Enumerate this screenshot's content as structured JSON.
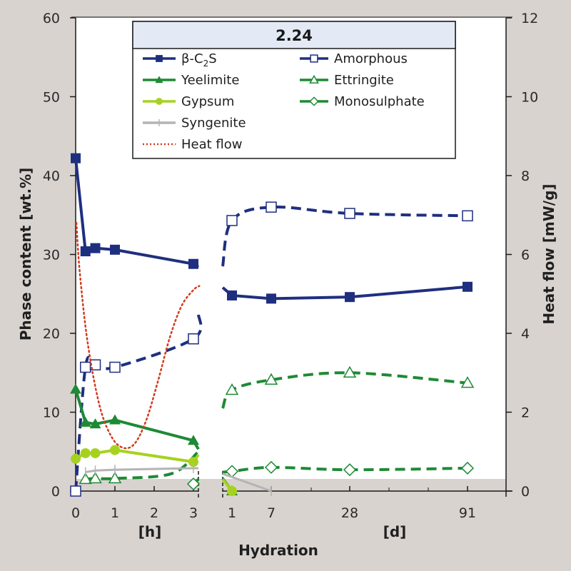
{
  "chart_data": {
    "type": "line",
    "title": "2.24",
    "xlabel": "Hydration",
    "ylabel": "Phase content [wt.%]",
    "y2label": "Heat flow [mW/g]",
    "ylim": [
      0,
      60
    ],
    "y2lim": [
      0,
      12
    ],
    "yticks": [
      0,
      10,
      20,
      30,
      40,
      50,
      60
    ],
    "y2ticks": [
      0,
      2,
      4,
      6,
      8,
      10,
      12
    ],
    "grid": false,
    "legend_placement": "top-center",
    "x_segments": [
      {
        "unit_label": "[h]",
        "range": [
          0,
          3.2
        ],
        "ticks": [
          0,
          1,
          2,
          3
        ],
        "tick_labels": [
          "0",
          "1",
          "2",
          "3"
        ]
      },
      {
        "unit_label": "[d]",
        "range": [
          0,
          112
        ],
        "ticks": [
          1,
          7,
          28,
          91
        ],
        "tick_labels": [
          "1",
          "7",
          "28",
          "91"
        ]
      }
    ],
    "series": [
      {
        "name": "β-C2S",
        "legend_label": "β-C",
        "legend_sub": "2",
        "legend_tail": "S",
        "color": "#1f2f7f",
        "line": "solid",
        "marker": "square-filled",
        "hours": [
          [
            0,
            42.2
          ],
          [
            0.25,
            30.4
          ],
          [
            0.5,
            30.8
          ],
          [
            1,
            30.6
          ],
          [
            3,
            28.8
          ]
        ],
        "days": [
          [
            1,
            24.8
          ],
          [
            7,
            24.4
          ],
          [
            28,
            24.6
          ],
          [
            91,
            25.9
          ]
        ]
      },
      {
        "name": "Amorphous",
        "legend_label": "Amorphous",
        "color": "#1f2f7f",
        "line": "dashed",
        "marker": "square-open",
        "hours": [
          [
            0,
            0
          ],
          [
            0.25,
            15.7
          ],
          [
            0.5,
            16.0
          ],
          [
            1,
            15.7
          ],
          [
            3,
            19.3
          ]
        ],
        "days": [
          [
            1,
            34.3
          ],
          [
            7,
            36.0
          ],
          [
            28,
            35.2
          ],
          [
            91,
            34.9
          ]
        ]
      },
      {
        "name": "Yeelimite",
        "legend_label": "Yeelimite",
        "color": "#1e8a35",
        "line": "solid",
        "marker": "triangle-filled",
        "hours": [
          [
            0,
            12.9
          ],
          [
            0.25,
            8.7
          ],
          [
            0.5,
            8.5
          ],
          [
            1,
            9.0
          ],
          [
            3,
            6.4
          ]
        ],
        "days": [
          [
            1,
            0
          ]
        ]
      },
      {
        "name": "Ettringite",
        "legend_label": "Ettringite",
        "color": "#1e8a35",
        "line": "dashed",
        "marker": "triangle-open",
        "hours": [
          [
            0.25,
            1.5
          ],
          [
            0.5,
            1.6
          ],
          [
            1,
            1.6
          ]
        ],
        "days": [
          [
            1,
            12.8
          ],
          [
            7,
            14.1
          ],
          [
            28,
            15.0
          ],
          [
            91,
            13.7
          ]
        ]
      },
      {
        "name": "Gypsum",
        "legend_label": "Gypsum",
        "color": "#a6d21f",
        "line": "solid",
        "marker": "circle-filled",
        "hours": [
          [
            0,
            4.1
          ],
          [
            0.25,
            4.8
          ],
          [
            0.5,
            4.8
          ],
          [
            1,
            5.2
          ],
          [
            3,
            3.7
          ]
        ],
        "days": [
          [
            1,
            0
          ]
        ]
      },
      {
        "name": "Monosulphate",
        "legend_label": "Monosulphate",
        "color": "#1e8a35",
        "line": "dashed",
        "marker": "diamond-open",
        "hours": [
          [
            3,
            0.9
          ]
        ],
        "days": [
          [
            1,
            2.5
          ],
          [
            7,
            3.0
          ],
          [
            28,
            2.7
          ],
          [
            91,
            2.9
          ]
        ]
      },
      {
        "name": "Syngenite",
        "legend_label": "Syngenite",
        "color": "#b4b4b4",
        "line": "solid",
        "marker": "plus",
        "hours": [
          [
            0.25,
            2.4
          ],
          [
            0.5,
            2.6
          ],
          [
            1,
            2.7
          ],
          [
            3,
            2.9
          ]
        ],
        "days": [
          [
            7,
            0
          ]
        ]
      },
      {
        "name": "Heat flow",
        "legend_label": "Heat flow",
        "color": "#d23a1e",
        "line": "dotted",
        "marker": "none",
        "axis": "right",
        "hours": [
          [
            0.02,
            6.8
          ],
          [
            0.1,
            5.6
          ],
          [
            0.3,
            3.8
          ],
          [
            0.6,
            2.2
          ],
          [
            0.9,
            1.4
          ],
          [
            1.2,
            1.1
          ],
          [
            1.5,
            1.2
          ],
          [
            1.8,
            1.8
          ],
          [
            2.1,
            2.8
          ],
          [
            2.4,
            3.9
          ],
          [
            2.7,
            4.7
          ],
          [
            3.0,
            5.1
          ],
          [
            3.15,
            5.2
          ]
        ],
        "days": []
      }
    ]
  }
}
